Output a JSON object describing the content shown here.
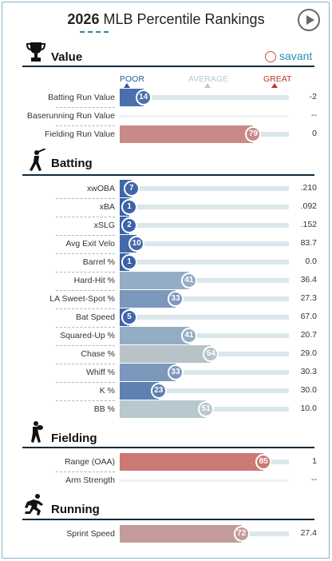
{
  "header": {
    "year": "2026",
    "title": "MLB Percentile Rankings"
  },
  "brand": {
    "savant": "savant"
  },
  "scale": {
    "poor": "POOR",
    "average": "AVERAGE",
    "great": "GREAT"
  },
  "colors": {
    "poor_blue": "#3b62a8",
    "avg_gray": "#b7c9cf",
    "great_red": "#d64f45"
  },
  "sections": {
    "value": {
      "title": "Value",
      "rows": [
        {
          "label": "Batting Run Value",
          "pct": "14",
          "value": "-2"
        },
        {
          "label": "Baserunning Run Value",
          "pct": "",
          "value": "--"
        },
        {
          "label": "Fielding Run Value",
          "pct": "79",
          "value": "0"
        }
      ]
    },
    "batting": {
      "title": "Batting",
      "rows": [
        {
          "label": "xwOBA",
          "pct": "7",
          "value": ".210"
        },
        {
          "label": "xBA",
          "pct": "1",
          "value": ".092"
        },
        {
          "label": "xSLG",
          "pct": "2",
          "value": ".152"
        },
        {
          "label": "Avg Exit Velo",
          "pct": "10",
          "value": "83.7"
        },
        {
          "label": "Barrel %",
          "pct": "1",
          "value": "0.0"
        },
        {
          "label": "Hard-Hit %",
          "pct": "41",
          "value": "36.4"
        },
        {
          "label": "LA Sweet-Spot %",
          "pct": "33",
          "value": "27.3"
        },
        {
          "label": "Bat Speed",
          "pct": "5",
          "value": "67.0"
        },
        {
          "label": "Squared-Up %",
          "pct": "41",
          "value": "20.7"
        },
        {
          "label": "Chase %",
          "pct": "54",
          "value": "29.0"
        },
        {
          "label": "Whiff %",
          "pct": "33",
          "value": "30.3"
        },
        {
          "label": "K %",
          "pct": "23",
          "value": "30.0"
        },
        {
          "label": "BB %",
          "pct": "51",
          "value": "10.0"
        }
      ]
    },
    "fielding": {
      "title": "Fielding",
      "rows": [
        {
          "label": "Range (OAA)",
          "pct": "85",
          "value": "1"
        },
        {
          "label": "Arm Strength",
          "pct": "",
          "value": "--"
        }
      ]
    },
    "running": {
      "title": "Running",
      "rows": [
        {
          "label": "Sprint Speed",
          "pct": "72",
          "value": "27.4"
        }
      ]
    }
  }
}
